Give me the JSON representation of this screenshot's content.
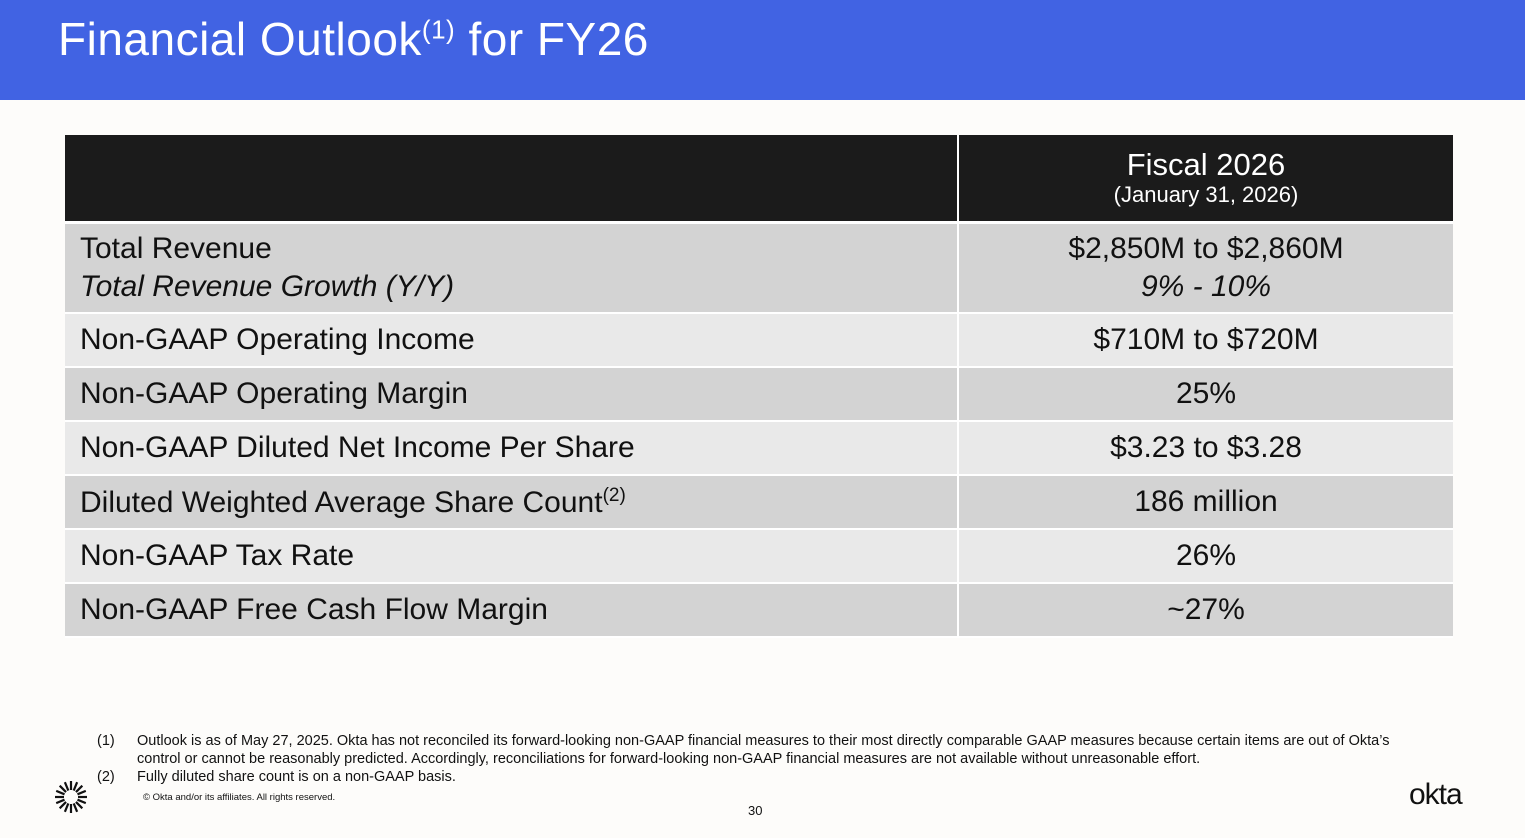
{
  "header": {
    "title": "Financial Outlook",
    "title_sup": "(1)",
    "title_suffix": " for FY26",
    "color": "#4163e3"
  },
  "table": {
    "column_header": "Fiscal 2026",
    "column_subheader": "(January 31, 2026)",
    "rows": [
      {
        "label": "Total Revenue",
        "sublabel": "Total Revenue Growth (Y/Y)",
        "value": "$2,850M to $2,860M",
        "subvalue": "9% - 10%"
      },
      {
        "label": "Non-GAAP Operating Income",
        "value": "$710M to $720M"
      },
      {
        "label": "Non-GAAP Operating Margin",
        "value": "25%"
      },
      {
        "label": "Non-GAAP Diluted Net Income Per Share",
        "value": "$3.23 to $3.28"
      },
      {
        "label": "Diluted Weighted Average Share Count",
        "label_sup": "(2)",
        "value": "186 million"
      },
      {
        "label": "Non-GAAP Tax Rate",
        "value": "26%"
      },
      {
        "label": "Non-GAAP Free Cash Flow Margin",
        "value": "~27%"
      }
    ]
  },
  "footnotes": [
    {
      "num": "(1)",
      "text": "Outlook is as of May 27, 2025. Okta has not reconciled its forward-looking non-GAAP financial measures to their most directly comparable GAAP measures because certain items are out of Okta’s control or cannot be reasonably predicted. Accordingly, reconciliations for forward-looking non-GAAP financial measures are not available without unreasonable effort."
    },
    {
      "num": "(2)",
      "text": "Fully diluted share count is on a non-GAAP basis."
    }
  ],
  "copyright": "© Okta and/or its affiliates. All rights reserved.",
  "page_number": "30",
  "logo": "okta"
}
